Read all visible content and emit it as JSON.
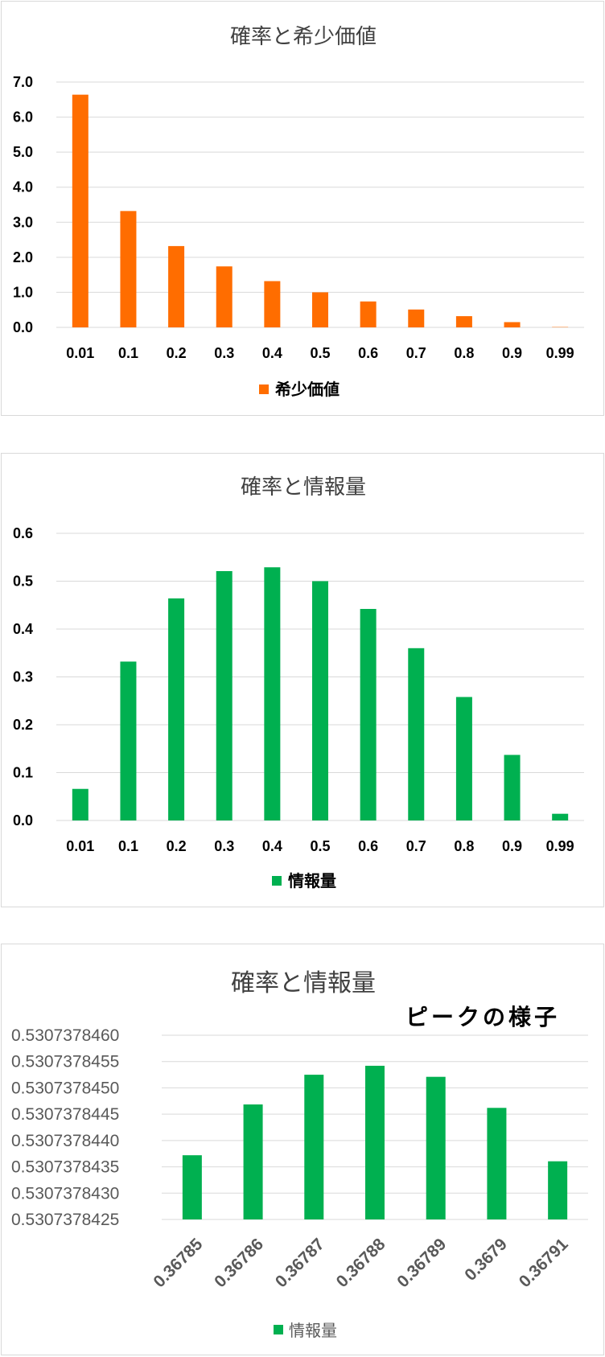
{
  "chart_data": [
    {
      "type": "bar",
      "title": "確率と希少価値",
      "categories": [
        "0.01",
        "0.1",
        "0.2",
        "0.3",
        "0.4",
        "0.5",
        "0.6",
        "0.7",
        "0.8",
        "0.9",
        "0.99"
      ],
      "series": [
        {
          "name": "希少価値",
          "color": "#ff6d00",
          "values": [
            6.64,
            3.32,
            2.32,
            1.74,
            1.32,
            1.0,
            0.74,
            0.51,
            0.32,
            0.15,
            0.01
          ]
        }
      ],
      "yticks": [
        "0.0",
        "1.0",
        "2.0",
        "3.0",
        "4.0",
        "5.0",
        "6.0",
        "7.0"
      ],
      "ylim": [
        0,
        7
      ],
      "grid": true,
      "legend_position": "bottom"
    },
    {
      "type": "bar",
      "title": "確率と情報量",
      "categories": [
        "0.01",
        "0.1",
        "0.2",
        "0.3",
        "0.4",
        "0.5",
        "0.6",
        "0.7",
        "0.8",
        "0.9",
        "0.99"
      ],
      "series": [
        {
          "name": "情報量",
          "color": "#00b050",
          "values": [
            0.066,
            0.332,
            0.464,
            0.521,
            0.529,
            0.5,
            0.442,
            0.36,
            0.258,
            0.137,
            0.014
          ]
        }
      ],
      "yticks": [
        "0.0",
        "0.1",
        "0.2",
        "0.3",
        "0.4",
        "0.5",
        "0.6"
      ],
      "ylim": [
        0,
        0.6
      ],
      "grid": true,
      "legend_position": "bottom"
    },
    {
      "type": "bar",
      "title": "確率と情報量",
      "annotation": "ピークの様子",
      "categories": [
        "0.36785",
        "0.36786",
        "0.36787",
        "0.36788",
        "0.36789",
        "0.3679",
        "0.36791"
      ],
      "series": [
        {
          "name": "情報量",
          "color": "#00b050",
          "values": [
            0.53073784372,
            0.530737844685,
            0.53073784525,
            0.53073784542,
            0.53073784521,
            0.53073784462,
            0.530737843605
          ]
        }
      ],
      "yticks": [
        "0.5307378425",
        "0.5307378430",
        "0.5307378435",
        "0.5307378440",
        "0.5307378445",
        "0.5307378450",
        "0.5307378455",
        "0.5307378460"
      ],
      "ylim": [
        0.5307378425,
        0.530737846
      ],
      "x_tick_rotation": -45,
      "grid": true,
      "legend_position": "bottom"
    }
  ]
}
